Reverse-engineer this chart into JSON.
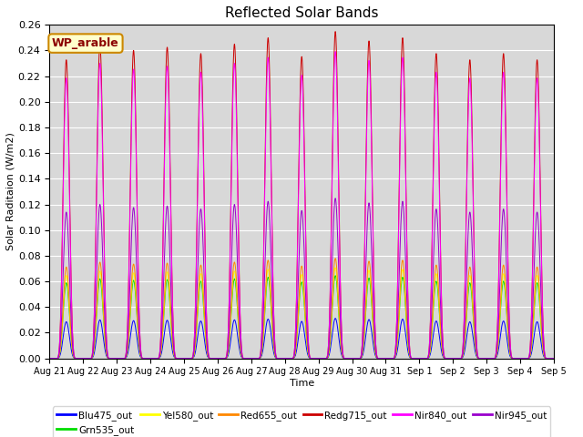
{
  "title": "Reflected Solar Bands",
  "xlabel": "Time",
  "ylabel": "Solar Raditaion (W/m2)",
  "ylim": [
    0,
    0.26
  ],
  "annotation": "WP_arable",
  "background_color": "#d8d8d8",
  "series": [
    {
      "name": "Blu475_out",
      "color": "#0000ff",
      "scale": 0.03
    },
    {
      "name": "Grn535_out",
      "color": "#00dd00",
      "scale": 0.062
    },
    {
      "name": "Yel580_out",
      "color": "#ffff00",
      "scale": 0.068
    },
    {
      "name": "Red655_out",
      "color": "#ff8800",
      "scale": 0.075
    },
    {
      "name": "Redg715_out",
      "color": "#cc0000",
      "scale": 0.245
    },
    {
      "name": "Nir840_out",
      "color": "#ff00ff",
      "scale": 0.23
    },
    {
      "name": "Nir945_out",
      "color": "#9900cc",
      "scale": 0.12
    }
  ],
  "num_days": 15,
  "points_per_day": 1440,
  "tick_labels": [
    "Aug 21",
    "Aug 22",
    "Aug 23",
    "Aug 24",
    "Aug 25",
    "Aug 26",
    "Aug 27",
    "Aug 28",
    "Aug 29",
    "Aug 30",
    "Aug 31",
    "Sep 1",
    "Sep 2",
    "Sep 3",
    "Sep 4",
    "Sep 5"
  ],
  "day_peaks": [
    0.95,
    1.0,
    0.98,
    0.99,
    0.97,
    1.0,
    1.02,
    0.96,
    1.04,
    1.01,
    1.02,
    0.97,
    0.95,
    0.97,
    0.95
  ]
}
